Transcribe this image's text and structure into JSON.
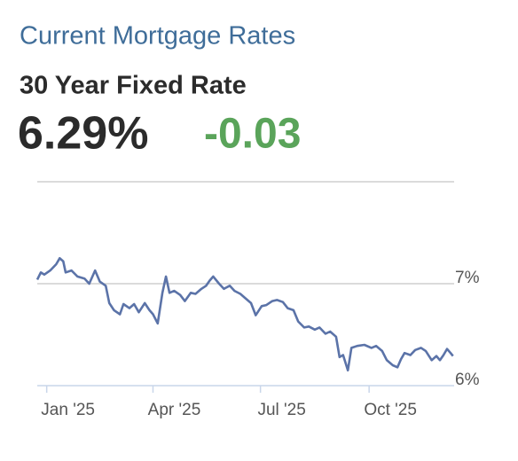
{
  "header": {
    "title": "Current Mortgage Rates",
    "subtitle": "30 Year Fixed Rate",
    "rate": "6.29%",
    "change": "-0.03"
  },
  "chart_data": {
    "type": "line",
    "x": [
      -8,
      -5,
      -2,
      3,
      8,
      11,
      14,
      16,
      21,
      26,
      32,
      36,
      41,
      45,
      50,
      53,
      57,
      62,
      65,
      70,
      74,
      78,
      83,
      87,
      90,
      94,
      98,
      101,
      104,
      108,
      113,
      117,
      122,
      126,
      131,
      135,
      138,
      141,
      146,
      150,
      155,
      159,
      164,
      168,
      173,
      177,
      182,
      186,
      191,
      195,
      200,
      204,
      209,
      213,
      218,
      222,
      227,
      231,
      236,
      240,
      245,
      248,
      251,
      255,
      258,
      263,
      269,
      275,
      279,
      284,
      288,
      293,
      297,
      300,
      303,
      308,
      312,
      317,
      321,
      326,
      330,
      333,
      336,
      339,
      342,
      344
    ],
    "series": [
      {
        "color": "#5b73a8",
        "values": [
          7.04,
          7.11,
          7.09,
          7.13,
          7.19,
          7.25,
          7.22,
          7.11,
          7.13,
          7.07,
          7.05,
          7.0,
          7.13,
          7.02,
          6.98,
          6.81,
          6.74,
          6.7,
          6.8,
          6.76,
          6.8,
          6.72,
          6.81,
          6.74,
          6.7,
          6.61,
          6.91,
          7.07,
          6.91,
          6.93,
          6.89,
          6.83,
          6.91,
          6.9,
          6.95,
          6.98,
          7.03,
          7.07,
          7.0,
          6.95,
          6.98,
          6.93,
          6.9,
          6.86,
          6.81,
          6.69,
          6.78,
          6.79,
          6.83,
          6.84,
          6.82,
          6.76,
          6.74,
          6.63,
          6.57,
          6.58,
          6.55,
          6.57,
          6.51,
          6.53,
          6.48,
          6.28,
          6.3,
          6.15,
          6.37,
          6.39,
          6.4,
          6.37,
          6.39,
          6.34,
          6.25,
          6.2,
          6.18,
          6.26,
          6.32,
          6.3,
          6.35,
          6.37,
          6.34,
          6.25,
          6.29,
          6.25,
          6.3,
          6.36,
          6.32,
          6.29
        ]
      }
    ],
    "xlim": [
      -8,
      345
    ],
    "xticks": [
      {
        "value": 0,
        "label": "Jan '25"
      },
      {
        "value": 90,
        "label": "Apr '25"
      },
      {
        "value": 181,
        "label": "Jul '25"
      },
      {
        "value": 273,
        "label": "Oct '25"
      }
    ],
    "ylim": [
      6,
      8
    ],
    "yticks": [
      {
        "value": 6,
        "label": "6%"
      },
      {
        "value": 7,
        "label": "7%"
      }
    ],
    "grid": true
  }
}
